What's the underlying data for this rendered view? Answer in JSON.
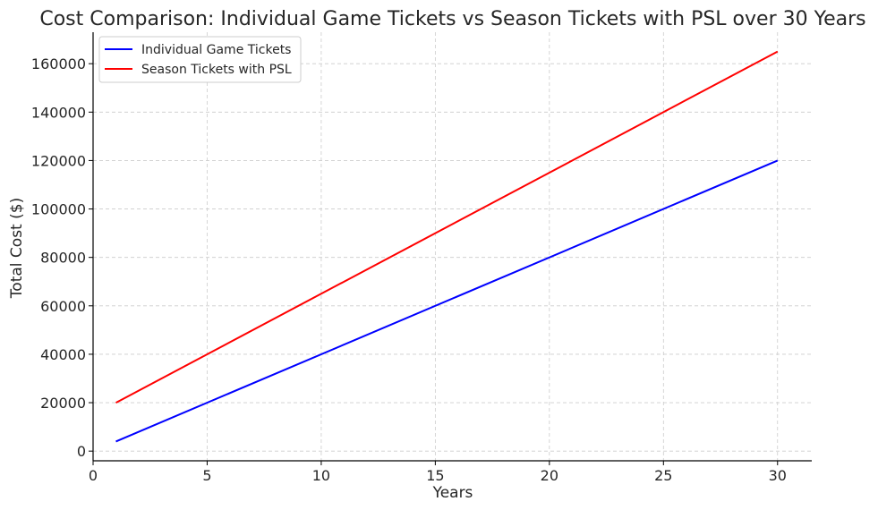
{
  "chart_data": {
    "type": "line",
    "title": "Cost Comparison: Individual Game Tickets vs Season Tickets with PSL over 30 Years",
    "xlabel": "Years",
    "ylabel": "Total Cost ($)",
    "xlim": [
      0,
      31.5
    ],
    "ylim": [
      -4000,
      173000
    ],
    "xticks": [
      0,
      5,
      10,
      15,
      20,
      25,
      30
    ],
    "yticks": [
      0,
      20000,
      40000,
      60000,
      80000,
      100000,
      120000,
      140000,
      160000
    ],
    "grid": true,
    "legend_position": "top-left",
    "series": [
      {
        "name": "Individual Game Tickets",
        "color": "#0000ff",
        "x": [
          1,
          30
        ],
        "y": [
          4000,
          120000
        ]
      },
      {
        "name": "Season Tickets with PSL",
        "color": "#ff0000",
        "x": [
          1,
          30
        ],
        "y": [
          20000,
          165000
        ]
      }
    ]
  }
}
